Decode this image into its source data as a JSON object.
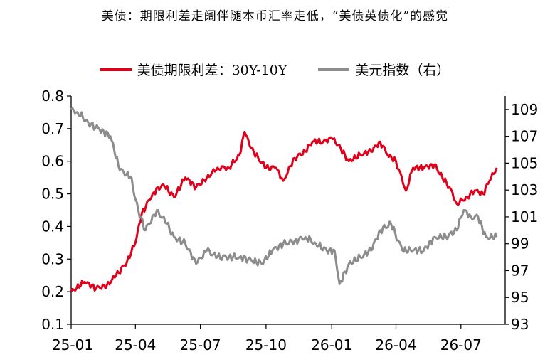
{
  "title": "美债：期限利差走阔伴随本币汇率走低，“美债英债化”的感觉",
  "colors": {
    "left_series": "#e0001b",
    "right_series": "#8c8c8c",
    "axis": "#000000"
  },
  "chart_data": {
    "type": "line",
    "title": "美债：期限利差走阔伴随本币汇率走低，“美债英债化”的感觉",
    "legend_position": "top-center",
    "grid": false,
    "x_ticks": [
      "25-01",
      "25-04",
      "25-07",
      "25-10",
      "26-01",
      "26-04",
      "26-07"
    ],
    "y_left": {
      "min": 0.1,
      "max": 0.8,
      "ticks": [
        "0.1",
        "0.2",
        "0.3",
        "0.4",
        "0.5",
        "0.6",
        "0.7",
        "0.8"
      ]
    },
    "y_right": {
      "min": 93,
      "max": 110,
      "ticks": [
        "93",
        "95",
        "97",
        "99",
        "101",
        "103",
        "105",
        "107",
        "109"
      ]
    },
    "series": [
      {
        "name": "美债期限利差：30Y-10Y",
        "axis": "left",
        "x": [
          "25-01-01",
          "25-01-20",
          "25-02-05",
          "25-02-20",
          "25-03-05",
          "25-03-20",
          "25-04-01",
          "25-04-10",
          "25-04-25",
          "25-05-10",
          "25-05-25",
          "25-06-10",
          "25-06-25",
          "25-07-10",
          "25-07-25",
          "25-08-10",
          "25-08-25",
          "25-09-01",
          "25-09-10",
          "25-09-20",
          "25-10-01",
          "25-10-15",
          "25-10-25",
          "25-11-10",
          "25-11-25",
          "25-12-05",
          "25-12-20",
          "26-01-01",
          "26-01-10",
          "26-01-25",
          "26-02-10",
          "26-02-25",
          "26-03-10",
          "26-03-20",
          "26-04-01",
          "26-04-15",
          "26-04-25",
          "26-05-10",
          "26-05-25",
          "26-06-05",
          "26-06-15",
          "26-06-25",
          "26-07-10",
          "26-07-20",
          "26-08-01",
          "26-08-10",
          "26-08-20"
        ],
        "values": [
          0.2,
          0.23,
          0.21,
          0.22,
          0.25,
          0.29,
          0.35,
          0.44,
          0.5,
          0.53,
          0.49,
          0.55,
          0.52,
          0.55,
          0.58,
          0.58,
          0.62,
          0.69,
          0.64,
          0.61,
          0.58,
          0.58,
          0.54,
          0.61,
          0.63,
          0.66,
          0.66,
          0.67,
          0.65,
          0.6,
          0.62,
          0.63,
          0.66,
          0.62,
          0.6,
          0.51,
          0.58,
          0.58,
          0.59,
          0.55,
          0.52,
          0.47,
          0.49,
          0.51,
          0.5,
          0.54,
          0.58
        ]
      },
      {
        "name": "美元指数（右）",
        "axis": "right",
        "x": [
          "25-01-01",
          "25-01-10",
          "25-01-25",
          "25-02-10",
          "25-02-25",
          "25-03-10",
          "25-03-25",
          "25-04-05",
          "25-04-15",
          "25-05-01",
          "25-05-15",
          "25-05-25",
          "25-06-10",
          "25-06-25",
          "25-07-10",
          "25-07-25",
          "25-08-10",
          "25-08-25",
          "25-09-10",
          "25-09-25",
          "25-10-10",
          "25-10-25",
          "25-11-10",
          "25-11-25",
          "25-12-10",
          "25-12-25",
          "26-01-05",
          "26-01-12",
          "26-01-25",
          "26-02-10",
          "26-02-25",
          "26-03-10",
          "26-03-25",
          "26-04-10",
          "26-04-25",
          "26-05-10",
          "26-05-25",
          "26-06-10",
          "26-06-25",
          "26-07-05",
          "26-07-15",
          "26-07-25",
          "26-08-05",
          "26-08-20"
        ],
        "values": [
          109,
          108.8,
          108,
          107.5,
          107,
          104.5,
          104,
          101.5,
          100,
          101.5,
          100.5,
          99.5,
          99,
          97.5,
          98.5,
          98,
          98,
          98,
          97.8,
          97.5,
          98.5,
          99,
          99.2,
          99.5,
          99,
          98.5,
          98.5,
          96,
          97.5,
          98,
          98.5,
          100,
          100.5,
          98.5,
          98.5,
          98.5,
          99.5,
          99.5,
          100,
          101.5,
          101,
          101,
          99.5,
          99.5
        ]
      }
    ]
  }
}
